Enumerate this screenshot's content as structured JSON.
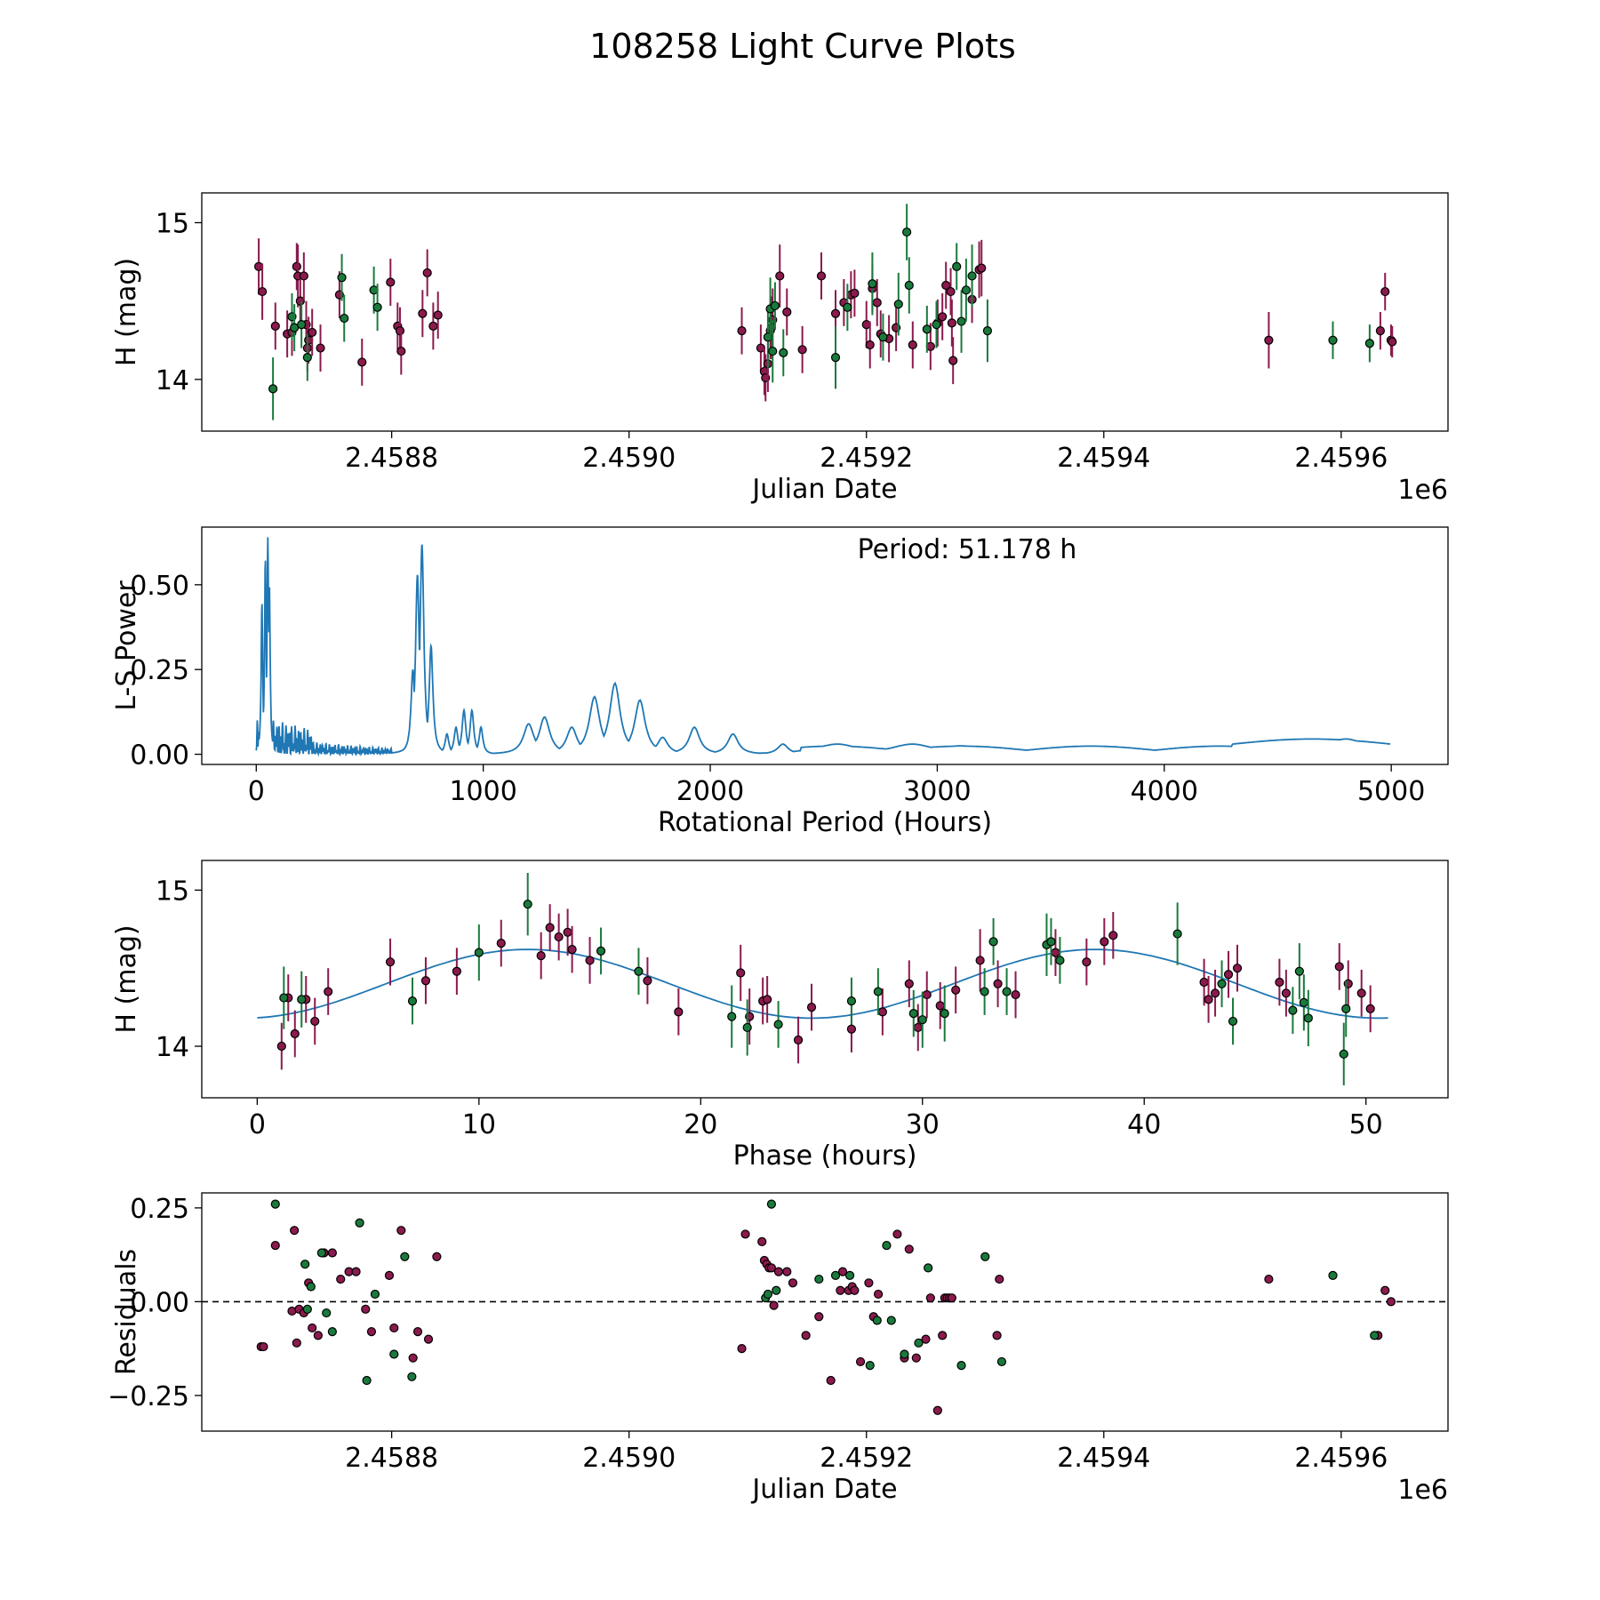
{
  "figure": {
    "title": "108258 Light Curve Plots"
  },
  "colors": {
    "r_band": "#8b1a4d",
    "g_band": "#1a7a3c",
    "curve": "#1f77b4",
    "axis": "#000000"
  },
  "chart_data": [
    {
      "id": "lightcurve",
      "type": "scatter",
      "xlabel": "Julian Date",
      "ylabel": "H (mag)",
      "offset_text": "1e6",
      "xlim": [
        2458640,
        2459690
      ],
      "ylim": [
        13.67,
        15.19
      ],
      "xticks": [
        2458800,
        2459000,
        2459200,
        2459400,
        2459600
      ],
      "xtick_labels": [
        "2.4588",
        "2.4590",
        "2.4592",
        "2.4594",
        "2.4596"
      ],
      "yticks": [
        14,
        15
      ],
      "ytick_labels": [
        "14",
        "15"
      ],
      "series": [
        {
          "name": "r",
          "color": "#8b1a4d",
          "x": [
            2458688,
            2458691,
            2458702,
            2458712,
            2458716,
            2458720,
            2458721,
            2458723,
            2458726,
            2458728,
            2458729,
            2458730,
            2458733,
            2458740,
            2458756,
            2458775,
            2458799,
            2458805,
            2458807,
            2458808,
            2458826,
            2458830,
            2458835,
            2458839,
            2459095,
            2459111,
            2459114,
            2459115,
            2459117,
            2459119,
            2459120,
            2459121,
            2459127,
            2459133,
            2459146,
            2459162,
            2459174,
            2459181,
            2459187,
            2459190,
            2459200,
            2459203,
            2459205,
            2459209,
            2459212,
            2459219,
            2459225,
            2459239,
            2459254,
            2459260,
            2459264,
            2459267,
            2459271,
            2459272,
            2459273,
            2459289,
            2459295,
            2459297,
            2459539,
            2459633,
            2459637,
            2459642,
            2459643
          ],
          "y": [
            14.72,
            14.56,
            14.34,
            14.29,
            14.3,
            14.72,
            14.66,
            14.5,
            14.66,
            14.35,
            14.2,
            14.25,
            14.3,
            14.2,
            14.54,
            14.11,
            14.62,
            14.34,
            14.31,
            14.18,
            14.42,
            14.68,
            14.34,
            14.41,
            14.31,
            14.2,
            14.05,
            14.01,
            14.1,
            14.31,
            14.33,
            14.38,
            14.66,
            14.43,
            14.19,
            14.66,
            14.42,
            14.49,
            14.54,
            14.55,
            14.35,
            14.22,
            14.58,
            14.49,
            14.29,
            14.26,
            14.33,
            14.22,
            14.21,
            14.36,
            14.4,
            14.6,
            14.56,
            14.36,
            14.12,
            14.51,
            14.7,
            14.71,
            14.25,
            14.31,
            14.56,
            14.25,
            14.24
          ],
          "err": [
            0.18,
            0.18,
            0.15,
            0.15,
            0.15,
            0.15,
            0.2,
            0.15,
            0.15,
            0.15,
            0.15,
            0.15,
            0.15,
            0.15,
            0.15,
            0.15,
            0.15,
            0.15,
            0.15,
            0.15,
            0.15,
            0.15,
            0.15,
            0.15,
            0.15,
            0.15,
            0.15,
            0.15,
            0.18,
            0.18,
            0.2,
            0.2,
            0.2,
            0.15,
            0.15,
            0.15,
            0.15,
            0.15,
            0.15,
            0.15,
            0.15,
            0.15,
            0.15,
            0.15,
            0.15,
            0.15,
            0.15,
            0.15,
            0.15,
            0.15,
            0.15,
            0.15,
            0.15,
            0.15,
            0.15,
            0.15,
            0.18,
            0.18,
            0.18,
            0.12,
            0.12,
            0.1,
            0.1
          ]
        },
        {
          "name": "g",
          "color": "#1a7a3c",
          "x": [
            2458700,
            2458716,
            2458718,
            2458724,
            2458729,
            2458758,
            2458760,
            2458785,
            2458788,
            2459117,
            2459119,
            2459121,
            2459123,
            2459130,
            2459174,
            2459184,
            2459205,
            2459214,
            2459227,
            2459234,
            2459236,
            2459251,
            2459259,
            2459276,
            2459280,
            2459284,
            2459289,
            2459302,
            2459593,
            2459624
          ],
          "y": [
            13.94,
            14.4,
            14.33,
            14.35,
            14.14,
            14.65,
            14.39,
            14.57,
            14.46,
            14.27,
            14.45,
            14.18,
            14.47,
            14.17,
            14.14,
            14.46,
            14.61,
            14.27,
            14.48,
            14.94,
            14.6,
            14.32,
            14.35,
            14.72,
            14.37,
            14.57,
            14.66,
            14.31,
            14.25,
            14.23
          ],
          "err": [
            0.2,
            0.15,
            0.15,
            0.15,
            0.15,
            0.15,
            0.15,
            0.15,
            0.15,
            0.2,
            0.2,
            0.2,
            0.15,
            0.15,
            0.2,
            0.15,
            0.2,
            0.15,
            0.2,
            0.18,
            0.18,
            0.15,
            0.15,
            0.15,
            0.2,
            0.2,
            0.2,
            0.2,
            0.12,
            0.12
          ]
        }
      ]
    },
    {
      "id": "periodogram",
      "type": "line",
      "xlabel": "Rotational Period (Hours)",
      "ylabel": "L-S Power",
      "annotation": "Period: 51.178 h",
      "xlim": [
        -240,
        5250
      ],
      "ylim": [
        -0.03,
        0.67
      ],
      "xticks": [
        0,
        1000,
        2000,
        3000,
        4000,
        5000
      ],
      "xtick_labels": [
        "0",
        "1000",
        "2000",
        "3000",
        "4000",
        "5000"
      ],
      "yticks": [
        0,
        0.25,
        0.5
      ],
      "ytick_labels": [
        "0.00",
        "0.25",
        "0.50"
      ],
      "peaks": [
        {
          "x": 25,
          "y": 0.45
        },
        {
          "x": 40,
          "y": 0.58
        },
        {
          "x": 51,
          "y": 0.64
        },
        {
          "x": 58,
          "y": 0.5
        },
        {
          "x": 690,
          "y": 0.25
        },
        {
          "x": 710,
          "y": 0.53
        },
        {
          "x": 730,
          "y": 0.62
        },
        {
          "x": 770,
          "y": 0.32
        },
        {
          "x": 840,
          "y": 0.06
        },
        {
          "x": 880,
          "y": 0.08
        },
        {
          "x": 915,
          "y": 0.13
        },
        {
          "x": 950,
          "y": 0.13
        },
        {
          "x": 990,
          "y": 0.08
        },
        {
          "x": 1200,
          "y": 0.09
        },
        {
          "x": 1270,
          "y": 0.11
        },
        {
          "x": 1390,
          "y": 0.08
        },
        {
          "x": 1490,
          "y": 0.17
        },
        {
          "x": 1580,
          "y": 0.21
        },
        {
          "x": 1690,
          "y": 0.16
        },
        {
          "x": 1790,
          "y": 0.05
        },
        {
          "x": 1930,
          "y": 0.08
        },
        {
          "x": 2100,
          "y": 0.06
        },
        {
          "x": 2320,
          "y": 0.03
        },
        {
          "x": 2560,
          "y": 0.03
        },
        {
          "x": 2890,
          "y": 0.03
        },
        {
          "x": 3100,
          "y": 0.025
        },
        {
          "x": 3650,
          "y": 0.02
        },
        {
          "x": 4800,
          "y": 0.045
        }
      ],
      "x_end": 5000,
      "y_end": 0.03
    },
    {
      "id": "phased",
      "type": "scatter",
      "xlabel": "Phase (hours)",
      "ylabel": "H (mag)",
      "period": 51.178,
      "model": {
        "mean": 14.4,
        "amplitude": 0.22,
        "peak_phase": 12.2,
        "period_fraction": 0.5
      },
      "xlim": [
        -2.5,
        53.7
      ],
      "ylim": [
        13.67,
        15.19
      ],
      "xticks": [
        0,
        10,
        20,
        30,
        40,
        50
      ],
      "xtick_labels": [
        "0",
        "10",
        "20",
        "30",
        "40",
        "50"
      ],
      "yticks": [
        14,
        15
      ],
      "ytick_labels": [
        "14",
        "15"
      ],
      "series": [
        {
          "name": "r",
          "color": "#8b1a4d",
          "x": [
            1.1,
            1.4,
            1.7,
            2.2,
            2.6,
            3.2,
            6.0,
            7.6,
            9.0,
            11.0,
            12.8,
            13.2,
            13.6,
            14.0,
            14.2,
            15.0,
            17.6,
            19.0,
            21.8,
            22.2,
            22.8,
            23.0,
            24.4,
            25.0,
            26.8,
            28.2,
            29.4,
            29.8,
            30.2,
            30.8,
            31.5,
            32.6,
            33.4,
            34.2,
            36.0,
            37.4,
            38.2,
            38.6,
            42.7,
            42.9,
            43.2,
            43.8,
            44.2,
            46.1,
            46.4,
            48.8,
            49.2,
            49.8,
            50.2
          ],
          "y": [
            14.0,
            14.31,
            14.08,
            14.3,
            14.16,
            14.35,
            14.54,
            14.42,
            14.48,
            14.66,
            14.58,
            14.76,
            14.7,
            14.73,
            14.62,
            14.55,
            14.42,
            14.22,
            14.47,
            14.19,
            14.29,
            14.3,
            14.04,
            14.25,
            14.11,
            14.22,
            14.4,
            14.12,
            14.33,
            14.26,
            14.36,
            14.55,
            14.4,
            14.33,
            14.6,
            14.54,
            14.67,
            14.71,
            14.41,
            14.3,
            14.34,
            14.46,
            14.5,
            14.41,
            14.34,
            14.51,
            14.4,
            14.34,
            14.24
          ],
          "err": [
            0.15,
            0.15,
            0.15,
            0.15,
            0.15,
            0.15,
            0.15,
            0.15,
            0.15,
            0.15,
            0.15,
            0.15,
            0.15,
            0.15,
            0.15,
            0.15,
            0.15,
            0.15,
            0.18,
            0.18,
            0.15,
            0.15,
            0.15,
            0.15,
            0.15,
            0.15,
            0.15,
            0.15,
            0.15,
            0.15,
            0.15,
            0.2,
            0.15,
            0.15,
            0.15,
            0.15,
            0.15,
            0.15,
            0.15,
            0.15,
            0.15,
            0.15,
            0.15,
            0.15,
            0.15,
            0.15,
            0.15,
            0.15,
            0.15
          ]
        },
        {
          "name": "g",
          "color": "#1a7a3c",
          "x": [
            1.2,
            2.0,
            7.0,
            10.0,
            12.2,
            15.5,
            17.2,
            21.4,
            22.1,
            23.5,
            26.8,
            28.0,
            29.6,
            30.0,
            31.0,
            32.8,
            33.2,
            33.8,
            35.6,
            35.8,
            36.2,
            41.5,
            43.5,
            44.0,
            46.7,
            47.0,
            47.2,
            47.4,
            49.0,
            49.1
          ],
          "y": [
            14.31,
            14.3,
            14.29,
            14.6,
            14.91,
            14.61,
            14.48,
            14.19,
            14.12,
            14.14,
            14.29,
            14.35,
            14.21,
            14.17,
            14.21,
            14.35,
            14.67,
            14.35,
            14.65,
            14.67,
            14.55,
            14.72,
            14.4,
            14.16,
            14.23,
            14.48,
            14.28,
            14.18,
            13.95,
            14.24
          ],
          "err": [
            0.2,
            0.18,
            0.15,
            0.18,
            0.2,
            0.15,
            0.15,
            0.2,
            0.18,
            0.15,
            0.15,
            0.15,
            0.15,
            0.18,
            0.18,
            0.15,
            0.15,
            0.15,
            0.2,
            0.15,
            0.15,
            0.2,
            0.15,
            0.15,
            0.15,
            0.18,
            0.18,
            0.18,
            0.2,
            0.18
          ]
        }
      ]
    },
    {
      "id": "residuals",
      "type": "scatter",
      "xlabel": "Julian Date",
      "ylabel": "Residuals",
      "offset_text": "1e6",
      "zero_line": 0,
      "xlim": [
        2458640,
        2459690
      ],
      "ylim": [
        -0.345,
        0.29
      ],
      "xticks": [
        2458800,
        2459000,
        2459200,
        2459400,
        2459600
      ],
      "xtick_labels": [
        "2.4588",
        "2.4590",
        "2.4592",
        "2.4594",
        "2.4596"
      ],
      "yticks": [
        -0.25,
        0,
        0.25
      ],
      "ytick_labels": [
        "−0.25",
        "0.00",
        "0.25"
      ],
      "series": [
        {
          "name": "r",
          "color": "#8b1a4d",
          "x": [
            2458690,
            2458692,
            2458702,
            2458716,
            2458718,
            2458720,
            2458722,
            2458726,
            2458730,
            2458733,
            2458738,
            2458743,
            2458750,
            2458757,
            2458764,
            2458770,
            2458778,
            2458783,
            2458798,
            2458802,
            2458808,
            2458818,
            2458822,
            2458831,
            2458838,
            2459095,
            2459098,
            2459112,
            2459114,
            2459116,
            2459118,
            2459120,
            2459122,
            2459126,
            2459133,
            2459138,
            2459149,
            2459160,
            2459170,
            2459178,
            2459180,
            2459185,
            2459188,
            2459190,
            2459195,
            2459202,
            2459206,
            2459210,
            2459226,
            2459232,
            2459236,
            2459242,
            2459250,
            2459254,
            2459260,
            2459264,
            2459266,
            2459268,
            2459270,
            2459272,
            2459310,
            2459312,
            2459539,
            2459631,
            2459637,
            2459642
          ],
          "y": [
            -0.12,
            -0.12,
            0.15,
            -0.025,
            0.19,
            -0.11,
            -0.02,
            -0.03,
            0.05,
            -0.07,
            -0.09,
            0.13,
            0.13,
            0.06,
            0.08,
            0.08,
            -0.02,
            -0.08,
            0.07,
            -0.07,
            0.19,
            -0.15,
            -0.08,
            -0.1,
            0.12,
            -0.125,
            0.18,
            0.16,
            0.11,
            0.1,
            0.09,
            0.09,
            -0.01,
            0.08,
            0.08,
            0.05,
            -0.09,
            -0.04,
            -0.21,
            0.03,
            0.08,
            0.03,
            0.04,
            0.03,
            -0.16,
            0.05,
            -0.04,
            0.02,
            0.18,
            -0.15,
            0.14,
            -0.15,
            -0.1,
            0.01,
            -0.29,
            -0.09,
            0.01,
            0.01,
            0.01,
            0.01,
            -0.09,
            0.06,
            0.06,
            -0.09,
            0.03,
            0.0
          ],
          "err": []
        },
        {
          "name": "g",
          "color": "#1a7a3c",
          "x": [
            2458702,
            2458727,
            2458729,
            2458732,
            2458741,
            2458745,
            2458750,
            2458773,
            2458779,
            2458786,
            2458802,
            2458811,
            2458817,
            2459115,
            2459117,
            2459120,
            2459124,
            2459160,
            2459174,
            2459186,
            2459203,
            2459209,
            2459217,
            2459221,
            2459232,
            2459244,
            2459252,
            2459280,
            2459300,
            2459314,
            2459593,
            2459628
          ],
          "y": [
            0.26,
            0.1,
            -0.02,
            0.04,
            0.13,
            -0.03,
            -0.08,
            0.21,
            -0.21,
            0.02,
            -0.14,
            0.12,
            -0.2,
            0.01,
            0.02,
            0.26,
            0.03,
            0.06,
            0.07,
            0.07,
            -0.17,
            -0.05,
            0.15,
            -0.05,
            -0.14,
            -0.11,
            0.09,
            -0.17,
            0.12,
            -0.16,
            0.07,
            -0.09
          ],
          "err": []
        }
      ]
    }
  ]
}
